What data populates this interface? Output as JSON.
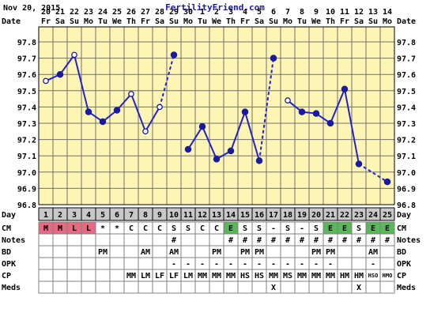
{
  "header": {
    "date": "Nov 20, 2015",
    "site": "FertilityFriend.com"
  },
  "row_labels": {
    "date": "Date",
    "day": "Day",
    "cm": "CM",
    "notes": "Notes",
    "bd": "BD",
    "opk": "OPK",
    "cp": "CP",
    "meds": "Meds"
  },
  "chart_data": {
    "type": "line",
    "dates": [
      "20",
      "21",
      "22",
      "23",
      "24",
      "25",
      "26",
      "27",
      "28",
      "29",
      "30",
      "1",
      "2",
      "3",
      "4",
      "5",
      "6",
      "7",
      "8",
      "9",
      "10",
      "11",
      "12",
      "13",
      "14"
    ],
    "weekdays": [
      "Fr",
      "Sa",
      "Su",
      "Mo",
      "Tu",
      "We",
      "Th",
      "Fr",
      "Sa",
      "Su",
      "Mo",
      "Tu",
      "We",
      "Th",
      "Fr",
      "Sa",
      "Su",
      "Mo",
      "Tu",
      "We",
      "Th",
      "Fr",
      "Sa",
      "Su",
      "Mo"
    ],
    "cycle_days": [
      "1",
      "2",
      "3",
      "4",
      "5",
      "6",
      "7",
      "8",
      "9",
      "10",
      "11",
      "12",
      "13",
      "14",
      "15",
      "16",
      "17",
      "18",
      "19",
      "20",
      "21",
      "22",
      "23",
      "24",
      "25"
    ],
    "y_ticks": [
      "97.8",
      "97.7",
      "97.6",
      "97.5",
      "97.4",
      "97.3",
      "97.2",
      "97.1",
      "97.0",
      "96.9",
      "96.8"
    ],
    "ylim": [
      96.8,
      97.8
    ],
    "temps": [
      97.56,
      97.6,
      97.72,
      97.37,
      97.31,
      97.38,
      97.48,
      97.25,
      97.4,
      97.72,
      97.14,
      97.28,
      97.08,
      97.13,
      97.37,
      97.07,
      97.7,
      97.44,
      97.37,
      97.36,
      97.3,
      97.51,
      97.05,
      null,
      96.94
    ],
    "marker": [
      "open",
      "solid",
      "open",
      "solid",
      "solid",
      "solid",
      "open",
      "open",
      "open",
      "solid",
      "solid",
      "solid",
      "solid",
      "solid",
      "solid",
      "solid",
      "solid",
      "open",
      "solid",
      "solid",
      "solid",
      "solid",
      "solid",
      "none",
      "solid"
    ],
    "connect_to_next": [
      "solid",
      "solid",
      "solid",
      "solid",
      "solid",
      "solid",
      "solid",
      "solid",
      "dashed",
      "none",
      "solid",
      "solid",
      "solid",
      "solid",
      "solid",
      "dashed",
      "none",
      "solid",
      "solid",
      "solid",
      "solid",
      "solid",
      "dashed",
      "dashed",
      "none"
    ]
  },
  "rows": {
    "cm": [
      "M",
      "M",
      "L",
      "L",
      "*",
      "*",
      "C",
      "C",
      "C",
      "S",
      "S",
      "C",
      "C",
      "E",
      "S",
      "S",
      "-",
      "S",
      "-",
      "S",
      "E",
      "E",
      "S",
      "E",
      "E"
    ],
    "cm_color": [
      "pink",
      "pink",
      "pink",
      "pink",
      "white",
      "white",
      "white",
      "white",
      "white",
      "white",
      "white",
      "white",
      "white",
      "green",
      "white",
      "white",
      "white",
      "white",
      "white",
      "white",
      "green",
      "green",
      "white",
      "green",
      "green"
    ],
    "notes": [
      "",
      "",
      "",
      "",
      "",
      "",
      "",
      "",
      "",
      "#",
      "",
      "",
      "",
      "#",
      "#",
      "#",
      "#",
      "#",
      "#",
      "#",
      "#",
      "#",
      "#",
      "#",
      "#"
    ],
    "bd": [
      "",
      "",
      "",
      "",
      "PM",
      "",
      "",
      "AM",
      "",
      "AM",
      "",
      "",
      "PM",
      "",
      "PM",
      "PM",
      "",
      "",
      "",
      "PM",
      "PM",
      "",
      "",
      "AM",
      ""
    ],
    "opk": [
      "",
      "",
      "",
      "",
      "",
      "",
      "",
      "",
      "",
      "-",
      "-",
      "-",
      "-",
      "-",
      "-",
      "-",
      "-",
      "-",
      "-",
      "-",
      "-",
      "",
      "",
      "-",
      ""
    ],
    "cp": [
      "",
      "",
      "",
      "",
      "",
      "",
      "MM",
      "LM",
      "LF",
      "LF",
      "LM",
      "MM",
      "MM",
      "MM",
      "HS",
      "HS",
      "MM",
      "MS",
      "MM",
      "MM",
      "MM",
      "HM",
      "HM",
      "HSO",
      "HMO"
    ],
    "meds": [
      "",
      "",
      "",
      "",
      "",
      "",
      "",
      "",
      "",
      "",
      "",
      "",
      "",
      "",
      "",
      "",
      "X",
      "",
      "",
      "",
      "",
      "",
      "X",
      "",
      ""
    ]
  }
}
